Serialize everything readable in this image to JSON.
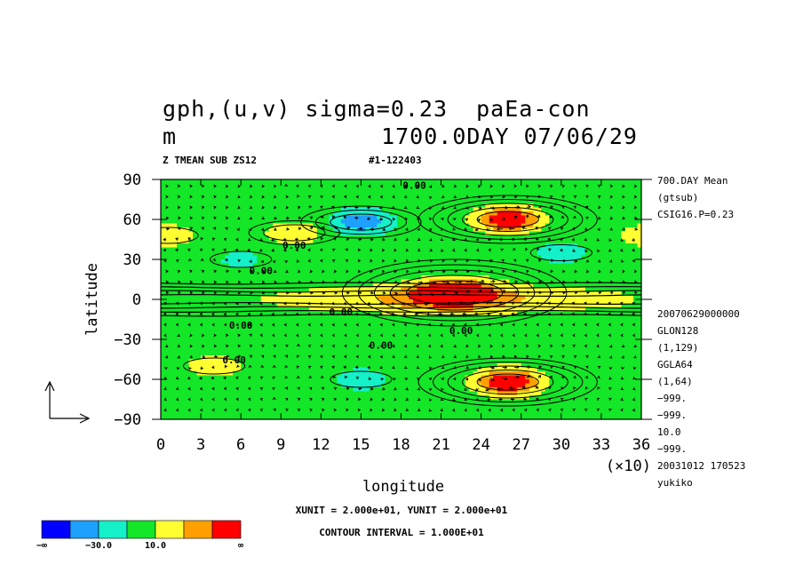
{
  "chart_data": {
    "type": "heatmap",
    "title_line1": "gph,(u,v) sigma=0.23  paEa-con",
    "title_line2": "m",
    "title_line2_right": "1700.0DAY 07/06/29",
    "subtitle_left": "Z TMEAN SUB ZS12",
    "subtitle_right": "#1-122403",
    "xlabel": "longitude",
    "ylabel": "latitude",
    "x_multiplier": "(×10)",
    "x_ticks": [
      "0",
      "3",
      "6",
      "9",
      "12",
      "15",
      "18",
      "21",
      "24",
      "27",
      "30",
      "33",
      "36"
    ],
    "y_ticks": [
      "90",
      "60",
      "30",
      "0",
      "−30",
      "−60",
      "−90"
    ],
    "xlim": [
      0,
      360
    ],
    "ylim": [
      -90,
      90
    ],
    "contour_label": "0.00",
    "side_info_top": [
      "700.DAY Mean",
      "(gtsub)",
      "CSIG16.P=0.23"
    ],
    "side_info_bottom": [
      "20070629000000",
      "GLON128",
      "(1,129)",
      "GGLA64",
      "(1,64)",
      "−999.",
      "−999.",
      "10.0",
      "−999.",
      "20031012 170523",
      "yukiko"
    ],
    "units_note": "XUNIT = 2.000e+01, YUNIT = 2.000e+01",
    "contour_interval": "CONTOUR INTERVAL = 1.000E+01",
    "colorbar": {
      "colors": [
        "#0000ff",
        "#1ea0ff",
        "#14f0c8",
        "#14e628",
        "#ffff32",
        "#ffa000",
        "#ff0000"
      ],
      "labels": [
        "−∞",
        "−30.0",
        "10.0",
        "∞"
      ]
    },
    "color_scale": {
      "min": -50,
      "max": 50,
      "note": "filled levels roughly: <-50 blue, -50..-30 lightblue, -30..-10 cyan, -10..10 green, 10..30 yellow, 30..50 orange, >50 red"
    },
    "features": [
      {
        "lon": 220,
        "lat": 5,
        "value": 90,
        "kind": "high"
      },
      {
        "lon": 260,
        "lat": 60,
        "value": 75,
        "kind": "high"
      },
      {
        "lon": 260,
        "lat": -62,
        "value": 80,
        "kind": "high"
      },
      {
        "lon": 150,
        "lat": 58,
        "value": -45,
        "kind": "low"
      },
      {
        "lon": 100,
        "lat": 50,
        "value": 25,
        "kind": "high"
      },
      {
        "lon": 5,
        "lat": 48,
        "value": 22,
        "kind": "high"
      },
      {
        "lon": 40,
        "lat": -50,
        "value": 22,
        "kind": "high"
      },
      {
        "lon": 150,
        "lat": -60,
        "value": -22,
        "kind": "low"
      },
      {
        "lon": 300,
        "lat": 35,
        "value": -20,
        "kind": "low"
      },
      {
        "lon": 60,
        "lat": 30,
        "value": -15,
        "kind": "low"
      }
    ]
  }
}
